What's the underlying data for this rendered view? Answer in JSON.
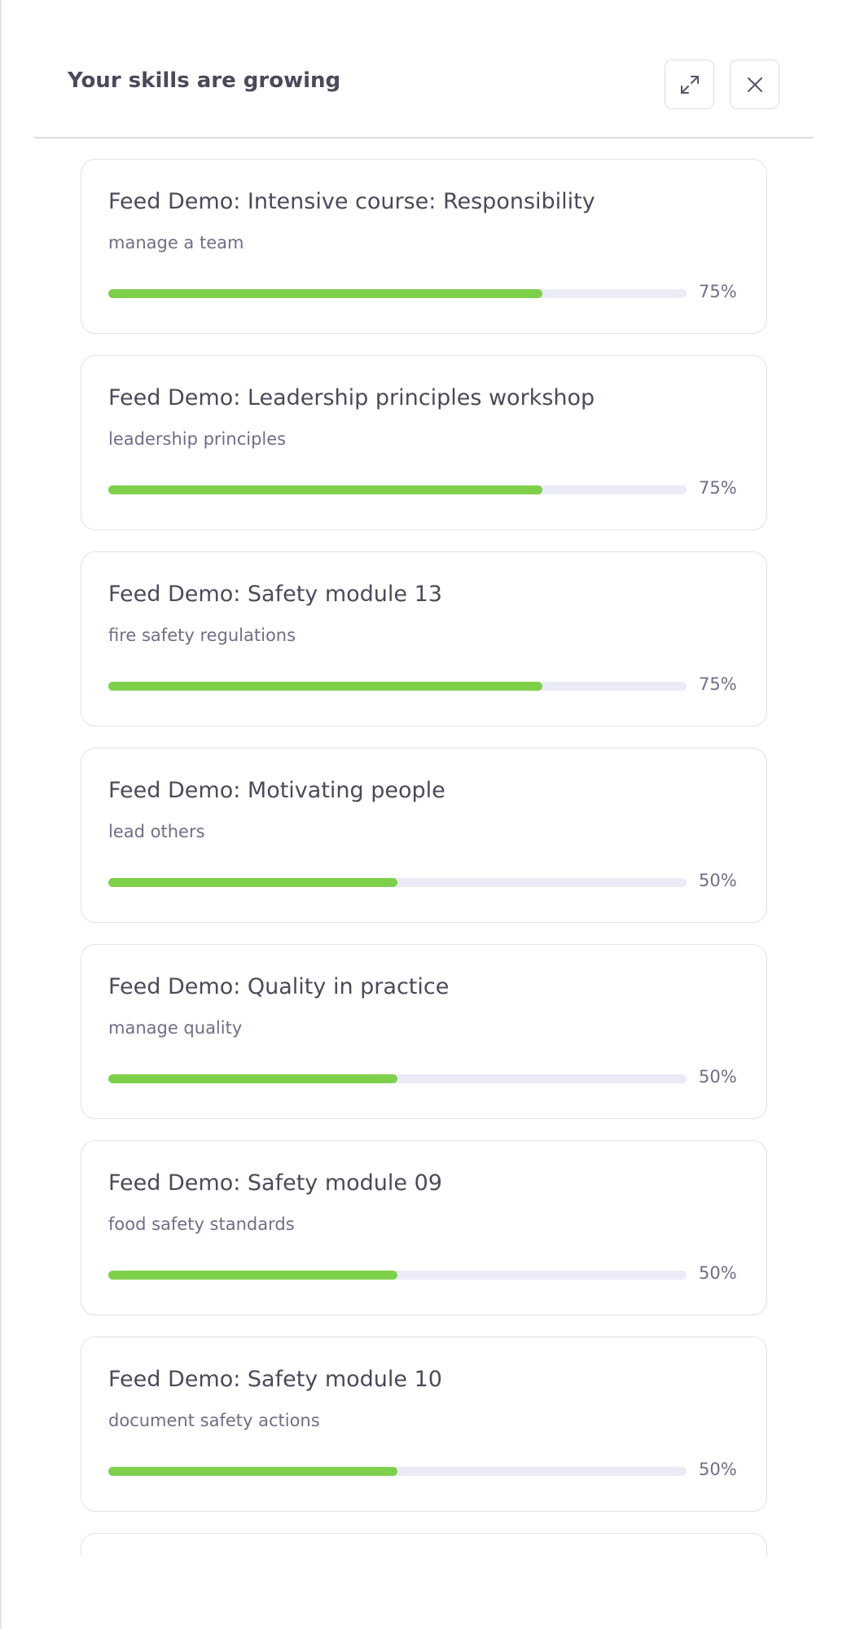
{
  "header": {
    "title": "Your skills are growing"
  },
  "items": [
    {
      "title": "Feed Demo: Intensive course: Responsibility",
      "skill": "manage a team",
      "value": 75,
      "value_label": "75%"
    },
    {
      "title": "Feed Demo: Leadership principles workshop",
      "skill": "leadership principles",
      "value": 75,
      "value_label": "75%"
    },
    {
      "title": "Feed Demo: Safety module 13",
      "skill": "fire safety regulations",
      "value": 75,
      "value_label": "75%"
    },
    {
      "title": "Feed Demo: Motivating people",
      "skill": "lead others",
      "value": 50,
      "value_label": "50%"
    },
    {
      "title": "Feed Demo: Quality in practice",
      "skill": "manage quality",
      "value": 50,
      "value_label": "50%"
    },
    {
      "title": "Feed Demo: Safety module 09",
      "skill": "food safety standards",
      "value": 50,
      "value_label": "50%"
    },
    {
      "title": "Feed Demo: Safety module 10",
      "skill": "document safety actions",
      "value": 50,
      "value_label": "50%"
    }
  ]
}
